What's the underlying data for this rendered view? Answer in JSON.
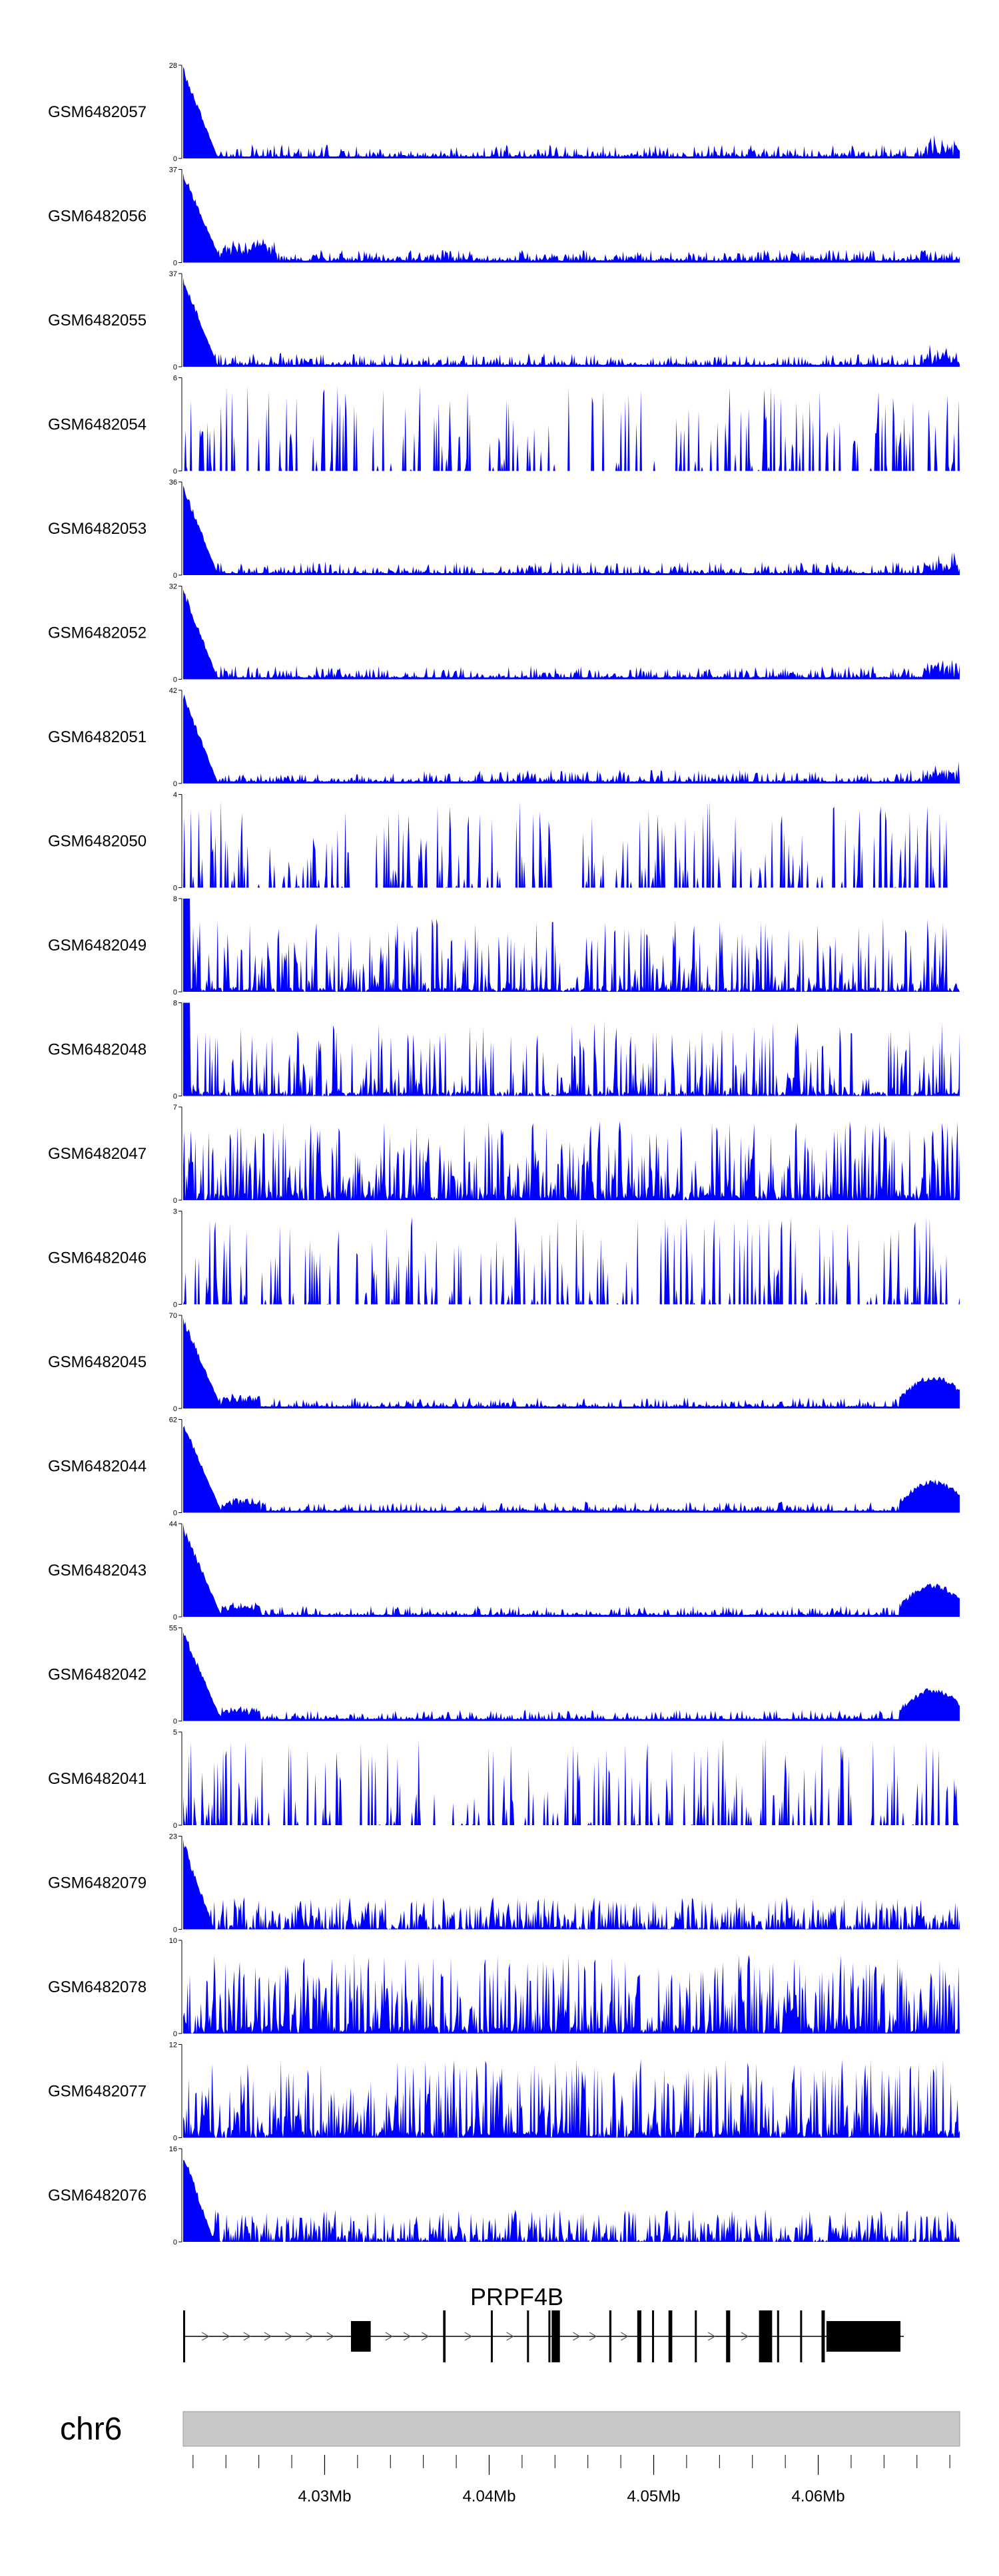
{
  "chart_data": {
    "type": "area",
    "genomic_region": {
      "chrom": "chr6",
      "start": 4021400,
      "end": 4068600
    },
    "tracks": [
      {
        "name": "GSM6482057",
        "ymax": 28,
        "ymin": 0,
        "color": "#0000ff",
        "profile": "peak5prime"
      },
      {
        "name": "GSM6482056",
        "ymax": 37,
        "ymin": 0,
        "color": "#0000ff",
        "profile": "peak5prime_broad"
      },
      {
        "name": "GSM6482055",
        "ymax": 37,
        "ymin": 0,
        "color": "#0000ff",
        "profile": "peak5prime"
      },
      {
        "name": "GSM6482054",
        "ymax": 6,
        "ymin": 0,
        "color": "#0000ff",
        "profile": "sparse"
      },
      {
        "name": "GSM6482053",
        "ymax": 36,
        "ymin": 0,
        "color": "#0000ff",
        "profile": "peak5prime"
      },
      {
        "name": "GSM6482052",
        "ymax": 32,
        "ymin": 0,
        "color": "#0000ff",
        "profile": "peak5prime"
      },
      {
        "name": "GSM6482051",
        "ymax": 42,
        "ymin": 0,
        "color": "#0000ff",
        "profile": "peak5prime"
      },
      {
        "name": "GSM6482050",
        "ymax": 4,
        "ymin": 0,
        "color": "#0000ff",
        "profile": "sparse"
      },
      {
        "name": "GSM6482049",
        "ymax": 8,
        "ymin": 0,
        "color": "#0000ff",
        "profile": "noisy"
      },
      {
        "name": "GSM6482048",
        "ymax": 8,
        "ymin": 0,
        "color": "#0000ff",
        "profile": "noisy"
      },
      {
        "name": "GSM6482047",
        "ymax": 7,
        "ymin": 0,
        "color": "#0000ff",
        "profile": "dense"
      },
      {
        "name": "GSM6482046",
        "ymax": 3,
        "ymin": 0,
        "color": "#0000ff",
        "profile": "sparse"
      },
      {
        "name": "GSM6482045",
        "ymax": 70,
        "ymin": 0,
        "color": "#0000ff",
        "profile": "peak5prime_3end"
      },
      {
        "name": "GSM6482044",
        "ymax": 62,
        "ymin": 0,
        "color": "#0000ff",
        "profile": "peak5prime_3end"
      },
      {
        "name": "GSM6482043",
        "ymax": 44,
        "ymin": 0,
        "color": "#0000ff",
        "profile": "peak5prime_3end"
      },
      {
        "name": "GSM6482042",
        "ymax": 55,
        "ymin": 0,
        "color": "#0000ff",
        "profile": "peak5prime_3end"
      },
      {
        "name": "GSM6482041",
        "ymax": 5,
        "ymin": 0,
        "color": "#0000ff",
        "profile": "sparse"
      },
      {
        "name": "GSM6482079",
        "ymax": 23,
        "ymin": 0,
        "color": "#0000ff",
        "profile": "peak5prime_moderate"
      },
      {
        "name": "GSM6482078",
        "ymax": 10,
        "ymin": 0,
        "color": "#0000ff",
        "profile": "dense"
      },
      {
        "name": "GSM6482077",
        "ymax": 12,
        "ymin": 0,
        "color": "#0000ff",
        "profile": "dense"
      },
      {
        "name": "GSM6482076",
        "ymax": 16,
        "ymin": 0,
        "color": "#0000ff",
        "profile": "peak5prime_moderate"
      }
    ],
    "gene": {
      "name": "PRPF4B",
      "strand": "+",
      "start": 4021400,
      "end": 4065200,
      "exons": [
        [
          4021400,
          4021480
        ],
        [
          4031600,
          4032800
        ],
        [
          4037200,
          4037350
        ],
        [
          4040100,
          4040220
        ],
        [
          4042300,
          4042420
        ],
        [
          4043600,
          4043720
        ],
        [
          4043800,
          4044300
        ],
        [
          4047300,
          4047430
        ],
        [
          4049000,
          4049250
        ],
        [
          4049900,
          4050020
        ],
        [
          4050900,
          4051130
        ],
        [
          4052500,
          4052620
        ],
        [
          4054400,
          4054650
        ],
        [
          4056400,
          4057200
        ],
        [
          4057500,
          4057620
        ],
        [
          4058900,
          4059020
        ],
        [
          4060200,
          4060400
        ],
        [
          4060500,
          4065000
        ]
      ]
    },
    "chromosome": "chr6",
    "x_axis": {
      "tick_labels": [
        "4.03Mb",
        "4.04Mb",
        "4.05Mb",
        "4.06Mb"
      ],
      "tick_values": [
        4030000,
        4040000,
        4050000,
        4060000
      ],
      "minor_tick_step": 2000
    }
  }
}
